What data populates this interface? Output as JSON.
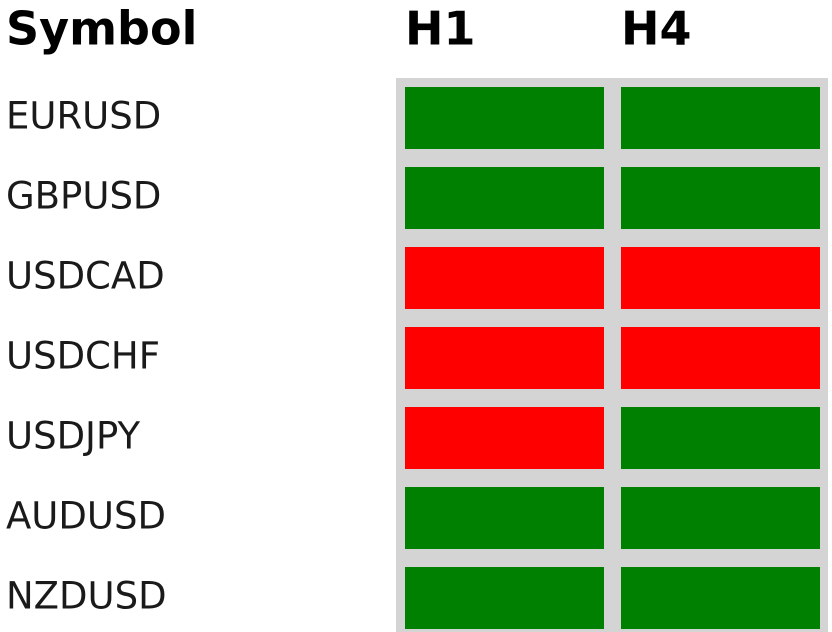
{
  "header": {
    "symbol": "Symbol",
    "columns": [
      "H1",
      "H4"
    ]
  },
  "rows": [
    {
      "symbol": "EURUSD",
      "colors": [
        "#008000",
        "#008000"
      ]
    },
    {
      "symbol": "GBPUSD",
      "colors": [
        "#008000",
        "#008000"
      ]
    },
    {
      "symbol": "USDCAD",
      "colors": [
        "#ff0000",
        "#ff0000"
      ]
    },
    {
      "symbol": "USDCHF",
      "colors": [
        "#ff0000",
        "#ff0000"
      ]
    },
    {
      "symbol": "USDJPY",
      "colors": [
        "#ff0000",
        "#008000"
      ]
    },
    {
      "symbol": "AUDUSD",
      "colors": [
        "#008000",
        "#008000"
      ]
    },
    {
      "symbol": "NZDUSD",
      "colors": [
        "#008000",
        "#008000"
      ]
    }
  ]
}
